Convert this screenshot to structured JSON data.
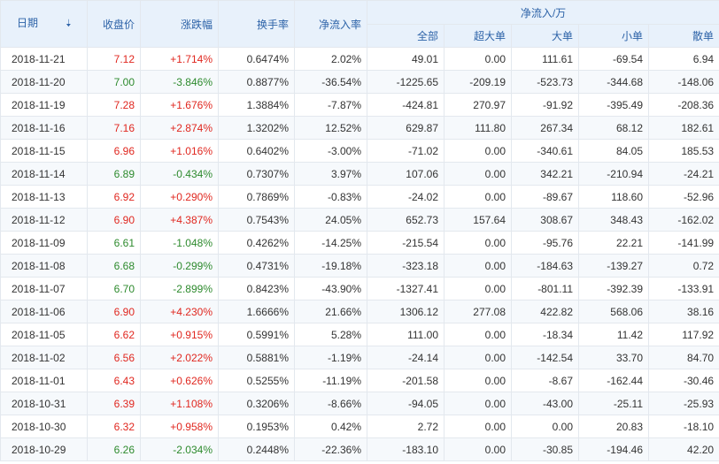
{
  "headers": {
    "date": "日期",
    "sort_icon": "sort-arrow-down-icon",
    "close": "收盘价",
    "change": "涨跌幅",
    "turnover": "换手率",
    "net_inflow_rate": "净流入率",
    "net_inflow_group": "净流入/万",
    "all": "全部",
    "super_large": "超大单",
    "large": "大单",
    "small": "小单",
    "retail": "散单"
  },
  "colors": {
    "up": "#e0271f",
    "down": "#2d8a2d",
    "header_text": "#2d63a8",
    "header_bg": "#e8f1fb"
  },
  "rows": [
    {
      "date": "2018-11-21",
      "close": "7.12",
      "change": "+1.714%",
      "dir": "up",
      "turnover": "0.6474%",
      "rate": "2.02%",
      "all": "49.01",
      "super": "0.00",
      "large": "111.61",
      "small": "-69.54",
      "retail": "6.94"
    },
    {
      "date": "2018-11-20",
      "close": "7.00",
      "change": "-3.846%",
      "dir": "down",
      "turnover": "0.8877%",
      "rate": "-36.54%",
      "all": "-1225.65",
      "super": "-209.19",
      "large": "-523.73",
      "small": "-344.68",
      "retail": "-148.06"
    },
    {
      "date": "2018-11-19",
      "close": "7.28",
      "change": "+1.676%",
      "dir": "up",
      "turnover": "1.3884%",
      "rate": "-7.87%",
      "all": "-424.81",
      "super": "270.97",
      "large": "-91.92",
      "small": "-395.49",
      "retail": "-208.36"
    },
    {
      "date": "2018-11-16",
      "close": "7.16",
      "change": "+2.874%",
      "dir": "up",
      "turnover": "1.3202%",
      "rate": "12.52%",
      "all": "629.87",
      "super": "111.80",
      "large": "267.34",
      "small": "68.12",
      "retail": "182.61"
    },
    {
      "date": "2018-11-15",
      "close": "6.96",
      "change": "+1.016%",
      "dir": "up",
      "turnover": "0.6402%",
      "rate": "-3.00%",
      "all": "-71.02",
      "super": "0.00",
      "large": "-340.61",
      "small": "84.05",
      "retail": "185.53"
    },
    {
      "date": "2018-11-14",
      "close": "6.89",
      "change": "-0.434%",
      "dir": "down",
      "turnover": "0.7307%",
      "rate": "3.97%",
      "all": "107.06",
      "super": "0.00",
      "large": "342.21",
      "small": "-210.94",
      "retail": "-24.21"
    },
    {
      "date": "2018-11-13",
      "close": "6.92",
      "change": "+0.290%",
      "dir": "up",
      "turnover": "0.7869%",
      "rate": "-0.83%",
      "all": "-24.02",
      "super": "0.00",
      "large": "-89.67",
      "small": "118.60",
      "retail": "-52.96"
    },
    {
      "date": "2018-11-12",
      "close": "6.90",
      "change": "+4.387%",
      "dir": "up",
      "turnover": "0.7543%",
      "rate": "24.05%",
      "all": "652.73",
      "super": "157.64",
      "large": "308.67",
      "small": "348.43",
      "retail": "-162.02"
    },
    {
      "date": "2018-11-09",
      "close": "6.61",
      "change": "-1.048%",
      "dir": "down",
      "turnover": "0.4262%",
      "rate": "-14.25%",
      "all": "-215.54",
      "super": "0.00",
      "large": "-95.76",
      "small": "22.21",
      "retail": "-141.99"
    },
    {
      "date": "2018-11-08",
      "close": "6.68",
      "change": "-0.299%",
      "dir": "down",
      "turnover": "0.4731%",
      "rate": "-19.18%",
      "all": "-323.18",
      "super": "0.00",
      "large": "-184.63",
      "small": "-139.27",
      "retail": "0.72"
    },
    {
      "date": "2018-11-07",
      "close": "6.70",
      "change": "-2.899%",
      "dir": "down",
      "turnover": "0.8423%",
      "rate": "-43.90%",
      "all": "-1327.41",
      "super": "0.00",
      "large": "-801.11",
      "small": "-392.39",
      "retail": "-133.91"
    },
    {
      "date": "2018-11-06",
      "close": "6.90",
      "change": "+4.230%",
      "dir": "up",
      "turnover": "1.6666%",
      "rate": "21.66%",
      "all": "1306.12",
      "super": "277.08",
      "large": "422.82",
      "small": "568.06",
      "retail": "38.16"
    },
    {
      "date": "2018-11-05",
      "close": "6.62",
      "change": "+0.915%",
      "dir": "up",
      "turnover": "0.5991%",
      "rate": "5.28%",
      "all": "111.00",
      "super": "0.00",
      "large": "-18.34",
      "small": "11.42",
      "retail": "117.92"
    },
    {
      "date": "2018-11-02",
      "close": "6.56",
      "change": "+2.022%",
      "dir": "up",
      "turnover": "0.5881%",
      "rate": "-1.19%",
      "all": "-24.14",
      "super": "0.00",
      "large": "-142.54",
      "small": "33.70",
      "retail": "84.70"
    },
    {
      "date": "2018-11-01",
      "close": "6.43",
      "change": "+0.626%",
      "dir": "up",
      "turnover": "0.5255%",
      "rate": "-11.19%",
      "all": "-201.58",
      "super": "0.00",
      "large": "-8.67",
      "small": "-162.44",
      "retail": "-30.46"
    },
    {
      "date": "2018-10-31",
      "close": "6.39",
      "change": "+1.108%",
      "dir": "up",
      "turnover": "0.3206%",
      "rate": "-8.66%",
      "all": "-94.05",
      "super": "0.00",
      "large": "-43.00",
      "small": "-25.11",
      "retail": "-25.93"
    },
    {
      "date": "2018-10-30",
      "close": "6.32",
      "change": "+0.958%",
      "dir": "up",
      "turnover": "0.1953%",
      "rate": "0.42%",
      "all": "2.72",
      "super": "0.00",
      "large": "0.00",
      "small": "20.83",
      "retail": "-18.10"
    },
    {
      "date": "2018-10-29",
      "close": "6.26",
      "change": "-2.034%",
      "dir": "down",
      "turnover": "0.2448%",
      "rate": "-22.36%",
      "all": "-183.10",
      "super": "0.00",
      "large": "-30.85",
      "small": "-194.46",
      "retail": "42.20"
    }
  ]
}
